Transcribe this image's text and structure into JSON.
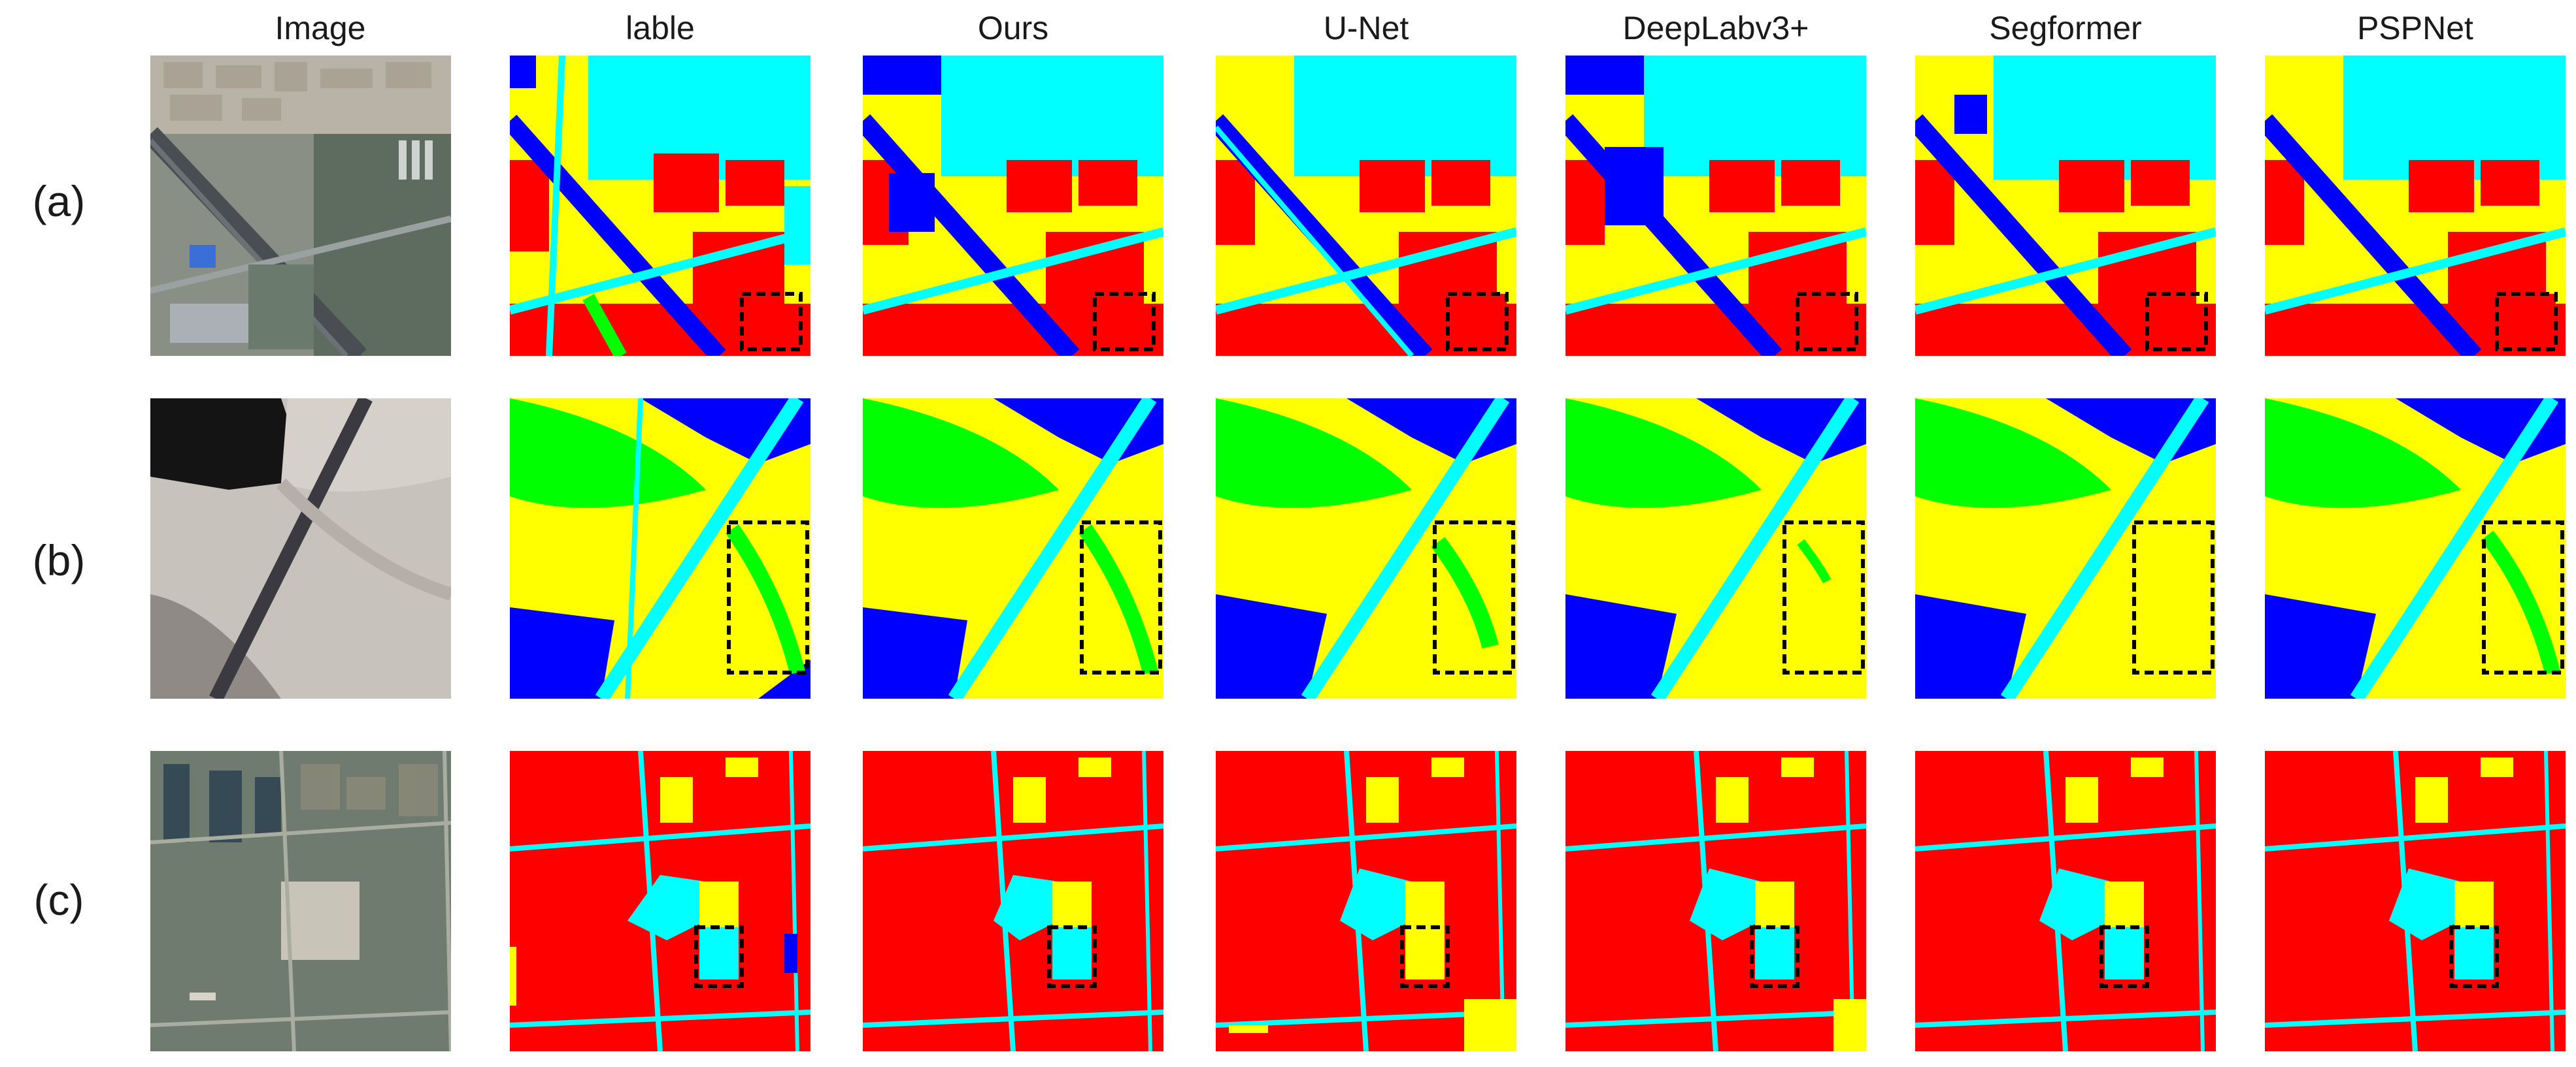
{
  "columns": [
    "Image",
    "lable",
    "Ours",
    "U-Net",
    "DeepLabv3+",
    "Segformer",
    "PSPNet"
  ],
  "rows": [
    "(a)",
    "(b)",
    "(c)"
  ],
  "palette": {
    "red": "#ff0000",
    "yellow": "#ffff00",
    "cyan": "#00ffff",
    "blue": "#0000ff",
    "green": "#00ff00",
    "box": "#000000"
  }
}
